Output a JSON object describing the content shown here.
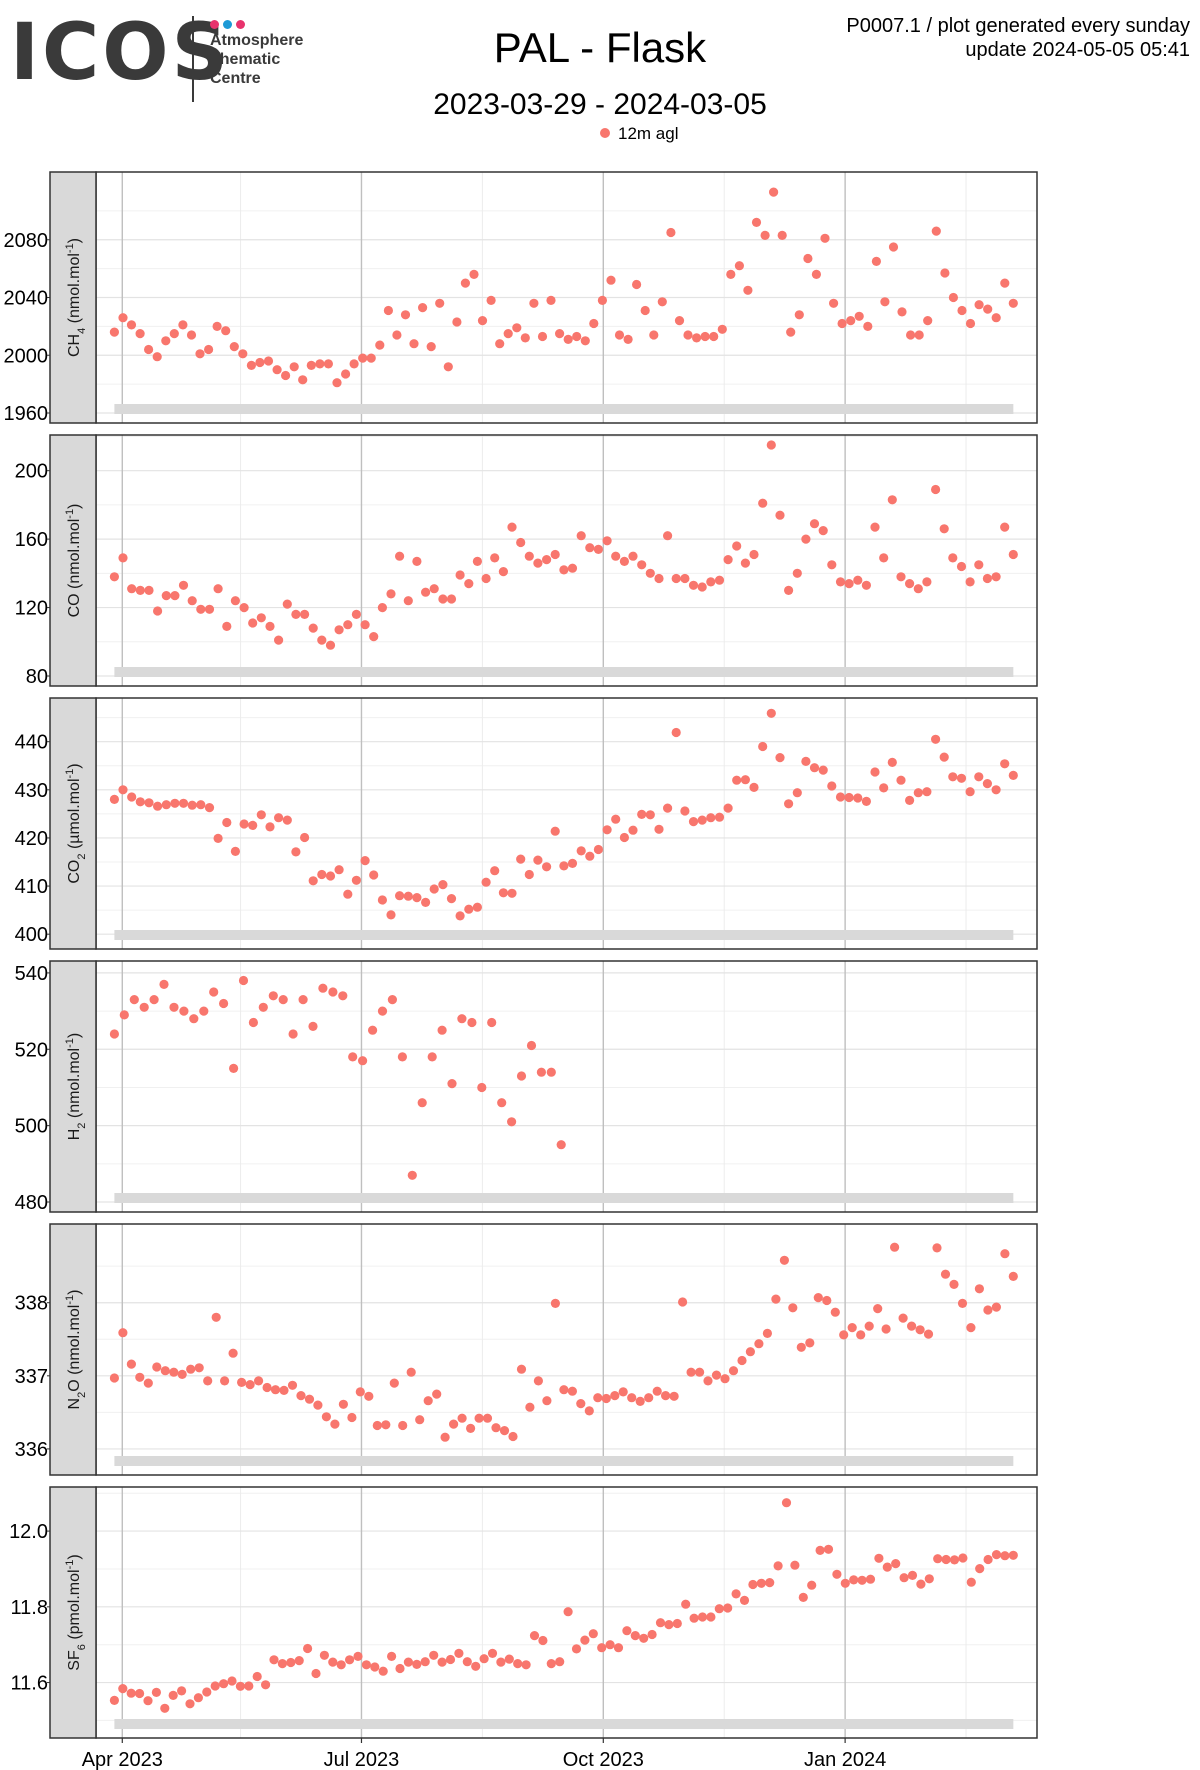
{
  "header": {
    "logo_text": "ICOS",
    "logo_subtitle": [
      "Atmosphere",
      "Thematic",
      "Centre"
    ],
    "logo_dot_colors": [
      "#e8336d",
      "#1d9ad6",
      "#e8336d"
    ],
    "title": "PAL - Flask",
    "subtitle": "2023-03-29 - 2024-03-05",
    "info_line1": "P0007.1 / plot generated every sunday",
    "info_line2": "update  2024-05-05 05:41"
  },
  "legend": {
    "label": "12m agl",
    "color": "#f8766d"
  },
  "chart_data": {
    "type": "scatter",
    "x_range": [
      "2023-03-22",
      "2024-03-14"
    ],
    "x_ticks": [
      {
        "date": "2023-04-01",
        "label": "Apr 2023"
      },
      {
        "date": "2023-07-01",
        "label": "Jul 2023"
      },
      {
        "date": "2023-10-01",
        "label": "Oct 2023"
      },
      {
        "date": "2024-01-01",
        "label": "Jan 2024"
      }
    ],
    "x_minor_ticks": [
      "2023-05-16",
      "2023-08-16",
      "2023-11-16",
      "2024-02-16"
    ],
    "grid": true,
    "marker_color": "#f8766d",
    "coverage_bar": {
      "start": "2023-03-29",
      "end": "2024-03-05",
      "color": "#d9d9d9"
    },
    "panels": [
      {
        "name": "ch4",
        "ylabel_main": "CH",
        "ylabel_sub": "4",
        "ylabel_unit": " (nmol.mol",
        "ylabel_sup": "-1",
        "ylabel_end": ")",
        "ylim": [
          1960,
          2120
        ],
        "ticks": [
          1960,
          2000,
          2040,
          2080
        ],
        "tick_labels": [
          "1960",
          "2000",
          "2040",
          "2080"
        ],
        "values": [
          2016,
          2026,
          2021,
          2015,
          2004,
          1999,
          2010,
          2015,
          2021,
          2014,
          2001,
          2004,
          2020,
          2017,
          2006,
          2001,
          1993,
          1995,
          1996,
          1990,
          1986,
          1992,
          1983,
          1993,
          1994,
          1994,
          1981,
          1987,
          1994,
          1998,
          1998,
          2007,
          2031,
          2014,
          2028,
          2008,
          2033,
          2006,
          2036,
          1992,
          2023,
          2050,
          2056,
          2024,
          2038,
          2008,
          2015,
          2019,
          2012,
          2036,
          2013,
          2038,
          2015,
          2011,
          2013,
          2010,
          2022,
          2038,
          2052,
          2014,
          2011,
          2049,
          2031,
          2014,
          2037,
          2085,
          2024,
          2014,
          2012,
          2013,
          2013,
          2018,
          2056,
          2062,
          2045,
          2092,
          2083,
          2113,
          2083,
          2016,
          2028,
          2067,
          2056,
          2081,
          2036,
          2022,
          2024,
          2027,
          2020,
          2065,
          2037,
          2075,
          2030,
          2014,
          2014,
          2024,
          2086,
          2057,
          2040,
          2031,
          2022,
          2035,
          2032,
          2026,
          2050,
          2036
        ]
      },
      {
        "name": "co",
        "ylabel_main": "CO",
        "ylabel_sub": "",
        "ylabel_unit": " (nmol.mol",
        "ylabel_sup": "-1",
        "ylabel_end": ")",
        "ylim": [
          80,
          215
        ],
        "ticks": [
          80,
          120,
          160,
          200
        ],
        "tick_labels": [
          "80",
          "120",
          "160",
          "200"
        ],
        "values": [
          138,
          149,
          131,
          130,
          130,
          118,
          127,
          127,
          133,
          124,
          119,
          119,
          131,
          109,
          124,
          120,
          111,
          114,
          109,
          101,
          122,
          116,
          116,
          108,
          101,
          98,
          107,
          110,
          116,
          110,
          103,
          120,
          128,
          150,
          124,
          147,
          129,
          131,
          125,
          125,
          139,
          134,
          147,
          137,
          149,
          141,
          167,
          158,
          150,
          146,
          148,
          151,
          142,
          143,
          162,
          155,
          154,
          159,
          150,
          147,
          150,
          145,
          140,
          137,
          162,
          137,
          137,
          133,
          132,
          135,
          136,
          148,
          156,
          146,
          151,
          181,
          215,
          174,
          130,
          140,
          160,
          169,
          165,
          145,
          135,
          134,
          136,
          133,
          167,
          149,
          183,
          138,
          134,
          131,
          135,
          189,
          166,
          149,
          144,
          135,
          145,
          137,
          138,
          167,
          151
        ]
      },
      {
        "name": "co2",
        "ylabel_main": "CO",
        "ylabel_sub": "2",
        "ylabel_unit": " (µmol.mol",
        "ylabel_sup": "-1",
        "ylabel_end": ")",
        "ylim": [
          399,
          447
        ],
        "ticks": [
          400,
          410,
          420,
          430,
          440
        ],
        "tick_labels": [
          "400",
          "410",
          "420",
          "430",
          "440"
        ],
        "values": [
          428.0,
          430.0,
          428.5,
          427.5,
          427.3,
          426.6,
          426.9,
          427.2,
          427.2,
          426.8,
          426.9,
          426.3,
          419.9,
          423.2,
          417.2,
          422.9,
          422.6,
          424.8,
          422.3,
          424.2,
          423.7,
          417.1,
          420.1,
          411.1,
          412.4,
          412.1,
          413.4,
          408.3,
          411.2,
          415.3,
          412.3,
          407.1,
          404.0,
          408.0,
          407.9,
          407.6,
          406.6,
          409.4,
          410.3,
          407.4,
          403.8,
          405.2,
          405.6,
          410.8,
          413.2,
          408.6,
          408.5,
          415.6,
          412.4,
          415.4,
          414.0,
          421.4,
          414.2,
          414.7,
          417.3,
          416.2,
          417.6,
          421.7,
          423.9,
          420.1,
          421.6,
          424.9,
          424.8,
          421.8,
          426.2,
          441.9,
          425.6,
          423.4,
          423.7,
          424.2,
          424.3,
          426.2,
          432.0,
          432.1,
          430.5,
          439.0,
          445.9,
          436.7,
          427.1,
          429.4,
          435.9,
          434.6,
          434.1,
          430.8,
          428.5,
          428.4,
          428.3,
          427.6,
          433.7,
          430.4,
          435.7,
          432.0,
          427.8,
          429.4,
          429.6,
          440.5,
          436.8,
          432.7,
          432.4,
          429.6,
          432.7,
          431.3,
          430.0,
          435.4,
          433.0
        ]
      },
      {
        "name": "h2",
        "ylabel_main": "H",
        "ylabel_sub": "2",
        "ylabel_unit": " (nmol.mol",
        "ylabel_sup": "-1",
        "ylabel_end": ")",
        "ylim": [
          480,
          540.5
        ],
        "ticks": [
          480,
          500,
          520,
          540
        ],
        "tick_labels": [
          "480",
          "500",
          "520",
          "540"
        ],
        "values": [
          524,
          529,
          533,
          531,
          533,
          537,
          531,
          530,
          528,
          530,
          535,
          532,
          515,
          538,
          527,
          531,
          534,
          533,
          524,
          533,
          526,
          536,
          535,
          534,
          518,
          517,
          525,
          530,
          533,
          518,
          487,
          506,
          518,
          525,
          511,
          528,
          527,
          510,
          527,
          506,
          501,
          513,
          521,
          514,
          514,
          495
        ]
      },
      {
        "name": "n2o",
        "ylabel_main": "N",
        "ylabel_sub": "2",
        "ylabel_unit": "O (nmol.mol",
        "ylabel_sup": "-1",
        "ylabel_end": ")",
        "ylim": [
          335.78,
          338.94
        ],
        "ticks": [
          336,
          337,
          338
        ],
        "tick_labels": [
          "336",
          "337",
          "338"
        ],
        "values": [
          336.97,
          337.59,
          337.16,
          336.98,
          336.9,
          337.12,
          337.07,
          337.05,
          337.02,
          337.09,
          337.11,
          336.93,
          337.8,
          336.93,
          337.31,
          336.91,
          336.88,
          336.93,
          336.84,
          336.81,
          336.8,
          336.87,
          336.73,
          336.68,
          336.6,
          336.44,
          336.34,
          336.61,
          336.43,
          336.78,
          336.72,
          336.32,
          336.33,
          336.9,
          336.32,
          337.05,
          336.4,
          336.66,
          336.75,
          336.16,
          336.34,
          336.42,
          336.28,
          336.42,
          336.42,
          336.29,
          336.25,
          336.17,
          337.09,
          336.57,
          336.93,
          336.66,
          337.99,
          336.81,
          336.79,
          336.62,
          336.52,
          336.7,
          336.69,
          336.73,
          336.78,
          336.7,
          336.65,
          336.7,
          336.79,
          336.73,
          336.72,
          338.01,
          337.05,
          337.05,
          336.93,
          337.01,
          336.96,
          337.07,
          337.21,
          337.33,
          337.44,
          337.58,
          338.05,
          338.58,
          337.93,
          337.39,
          337.45,
          338.07,
          338.03,
          337.87,
          337.56,
          337.66,
          337.56,
          337.68,
          337.92,
          337.64,
          338.76,
          337.79,
          337.68,
          337.63,
          337.57,
          338.75,
          338.39,
          338.25,
          337.99,
          337.66,
          338.19,
          337.9,
          337.94,
          338.67,
          338.36
        ]
      },
      {
        "name": "sf6",
        "ylabel_main": "SF",
        "ylabel_sub": "6",
        "ylabel_unit": " (pmol.mol",
        "ylabel_sup": "-1",
        "ylabel_end": ")",
        "ylim": [
          11.48,
          12.09
        ],
        "ticks": [
          11.6,
          11.8,
          12.0
        ],
        "tick_labels": [
          "11.6",
          "11.8",
          "12.0"
        ],
        "values": [
          11.553,
          11.584,
          11.572,
          11.571,
          11.552,
          11.574,
          11.532,
          11.566,
          11.578,
          11.544,
          11.56,
          11.575,
          11.591,
          11.597,
          11.604,
          11.59,
          11.591,
          11.616,
          11.594,
          11.66,
          11.65,
          11.653,
          11.658,
          11.69,
          11.624,
          11.672,
          11.654,
          11.647,
          11.66,
          11.669,
          11.647,
          11.641,
          11.63,
          11.669,
          11.637,
          11.654,
          11.648,
          11.655,
          11.672,
          11.654,
          11.661,
          11.677,
          11.655,
          11.643,
          11.663,
          11.677,
          11.654,
          11.662,
          11.65,
          11.647,
          11.724,
          11.711,
          11.65,
          11.655,
          11.787,
          11.689,
          11.712,
          11.729,
          11.692,
          11.7,
          11.692,
          11.737,
          11.724,
          11.717,
          11.727,
          11.758,
          11.753,
          11.756,
          11.807,
          11.77,
          11.773,
          11.773,
          11.795,
          11.797,
          11.834,
          11.817,
          11.859,
          11.862,
          11.864,
          11.908,
          12.075,
          11.91,
          11.825,
          11.857,
          11.949,
          11.952,
          11.886,
          11.862,
          11.871,
          11.87,
          11.873,
          11.928,
          11.905,
          11.914,
          11.877,
          11.883,
          11.86,
          11.874,
          11.927,
          11.925,
          11.924,
          11.929,
          11.865,
          11.901,
          11.925,
          11.938,
          11.935,
          11.936
        ]
      }
    ]
  }
}
